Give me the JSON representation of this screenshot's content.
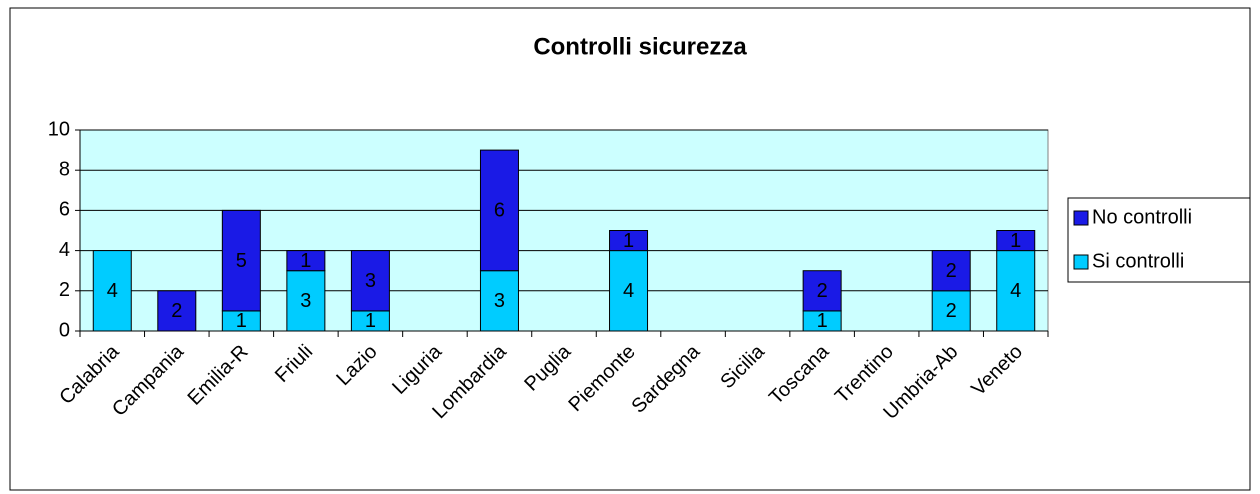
{
  "chart_data": {
    "type": "bar",
    "stacked": true,
    "title": "Controlli sicurezza",
    "categories": [
      "Calabria",
      "Campania",
      "Emilia-R",
      "Friuli",
      "Lazio",
      "Liguria",
      "Lombardia",
      "Puglia",
      "Piemonte",
      "Sardegna",
      "Sicilia",
      "Toscana",
      "Trentino",
      "Umbria-Ab",
      "Veneto"
    ],
    "series": [
      {
        "name": "Si controlli",
        "color": "#00ccff",
        "values": [
          4,
          null,
          1,
          3,
          1,
          null,
          3,
          null,
          4,
          null,
          null,
          1,
          null,
          2,
          4
        ]
      },
      {
        "name": "No controlli",
        "color": "#1a1ae6",
        "values": [
          null,
          2,
          5,
          1,
          3,
          null,
          6,
          null,
          1,
          null,
          null,
          2,
          null,
          2,
          1
        ]
      }
    ],
    "ylim": [
      0,
      10
    ],
    "yticks": [
      0,
      2,
      4,
      6,
      8,
      10
    ],
    "grid": true,
    "legend": "right"
  }
}
